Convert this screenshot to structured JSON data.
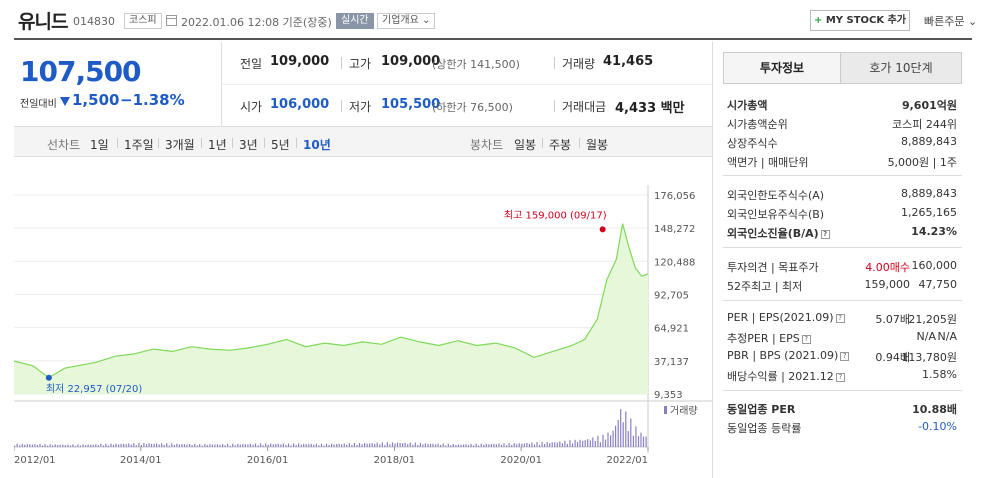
{
  "header": {
    "name": "유니드",
    "code": "014830",
    "market_badge": "코스피",
    "date_text": "2022.01.06 12:08 기준(장중)",
    "live_badge": "실시간",
    "info_badge": "기업개요 ⌄",
    "mystock_label": "MY STOCK 추가",
    "quick_order": "빠른주문 ⌄"
  },
  "price": {
    "current": "107,500",
    "prev_label": "전일대비",
    "change": "1,500",
    "change_pct": "−1.38%"
  },
  "stats": {
    "prev_close_label": "전일",
    "prev_close": "109,000",
    "high_label": "고가",
    "high": "109,000",
    "high_limit": "(상한가 141,500)",
    "volume_label": "거래량",
    "volume": "41,465",
    "open_label": "시가",
    "open": "106,000",
    "low_label": "저가",
    "low": "105,500",
    "low_limit": "(하한가 76,500)",
    "amount_label": "거래대금",
    "amount": "4,433 백만"
  },
  "period_bar": {
    "line_chart_label": "선차트",
    "line_periods": [
      "1일",
      "1주일",
      "3개월",
      "1년",
      "3년",
      "5년",
      "10년"
    ],
    "candle_label": "봉차트",
    "candle_periods": [
      "일봉",
      "주봉",
      "월봉"
    ]
  },
  "tabs": {
    "info": "투자정보",
    "orderbook": "호가 10단계"
  },
  "invest_info": {
    "market_cap_label": "시가총액",
    "market_cap": "9,601억원",
    "cap_rank_label": "시가총액순위",
    "cap_rank": "코스피 244위",
    "shares_label": "상장주식수",
    "shares": "8,889,843",
    "face_label": "액면가 | 매매단위",
    "face": "5,000원 | 1주",
    "foreign_limit_label": "외국인한도주식수(A)",
    "foreign_limit": "8,889,843",
    "foreign_hold_label": "외국인보유주식수(B)",
    "foreign_hold": "1,265,165",
    "foreign_ratio_label": "외국인소진율(B/A)",
    "foreign_ratio": "14.23%",
    "opinion_label": "투자의견 | 목표주가",
    "opinion": "4.00매수",
    "target": "160,000",
    "w52_label": "52주최고 | 최저",
    "w52_high": "159,000",
    "w52_low": "47,750",
    "per_label": "PER | EPS(2021.09)",
    "per": "5.07배",
    "eps": "21,205원",
    "est_per_label": "추정PER | EPS",
    "est_per": "N/A",
    "est_eps": "N/A",
    "pbr_label": "PBR | BPS (2021.09)",
    "pbr": "0.94배",
    "bps": "113,780원",
    "div_label": "배당수익률 | 2021.12",
    "div": "1.58%",
    "ind_per_label": "동일업종 PER",
    "ind_per": "10.88배",
    "ind_chg_label": "동일업종 등락률",
    "ind_chg": "-0.10%"
  },
  "chart_data": {
    "type": "area",
    "y_ticks": [
      176056,
      148272,
      120488,
      92705,
      64921,
      37137,
      9353
    ],
    "y_tick_labels": [
      "176,056",
      "148,272",
      "120,488",
      "92,705",
      "64,921",
      "37,137",
      "9,353"
    ],
    "ylim": [
      9353,
      176056
    ],
    "x_tick_labels": [
      "2012/01",
      "2014/01",
      "2016/01",
      "2018/01",
      "2020/01",
      "2022/01"
    ],
    "x_ticks": [
      2012,
      2014,
      2016,
      2018,
      2020,
      2022
    ],
    "xlim": [
      2012,
      2022
    ],
    "max_annotation": "최고 159,000 (09/17)",
    "min_annotation": "최저 22,957 (07/20)",
    "volume_label": "거래량",
    "line_color": "#7ed957",
    "fill_color": "#e6f7da",
    "series": [
      {
        "x": [
          2012.0,
          2012.3,
          2012.55,
          2012.8,
          2013.0,
          2013.3,
          2013.6,
          2013.9,
          2014.2,
          2014.5,
          2014.8,
          2015.1,
          2015.4,
          2015.7,
          2016.0,
          2016.3,
          2016.6,
          2016.9,
          2017.2,
          2017.5,
          2017.8,
          2018.1,
          2018.4,
          2018.7,
          2019.0,
          2019.3,
          2019.6,
          2019.9,
          2020.2,
          2020.5,
          2020.8,
          2021.0,
          2021.2,
          2021.35,
          2021.5,
          2021.6,
          2021.7,
          2021.8,
          2021.9,
          2022.0
        ],
        "y": [
          37000,
          33000,
          23000,
          31000,
          33000,
          36000,
          41000,
          43000,
          47000,
          45000,
          49000,
          47000,
          46000,
          48000,
          51000,
          55000,
          49000,
          52000,
          50000,
          53000,
          51000,
          57000,
          53000,
          50000,
          54000,
          50000,
          52000,
          48000,
          40000,
          45000,
          50000,
          55000,
          72000,
          105000,
          122000,
          152000,
          132000,
          115000,
          108000,
          110000
        ]
      }
    ],
    "volume": {
      "x": [
        2012.0,
        2013.0,
        2014.0,
        2015.0,
        2016.0,
        2017.0,
        2018.0,
        2019.0,
        2020.0,
        2020.6,
        2021.0,
        2021.3,
        2021.45,
        2021.55,
        2021.65,
        2021.75,
        2021.85,
        2021.95
      ],
      "v": [
        8,
        6,
        10,
        7,
        9,
        8,
        12,
        7,
        10,
        14,
        20,
        30,
        45,
        100,
        85,
        60,
        40,
        30
      ]
    }
  }
}
